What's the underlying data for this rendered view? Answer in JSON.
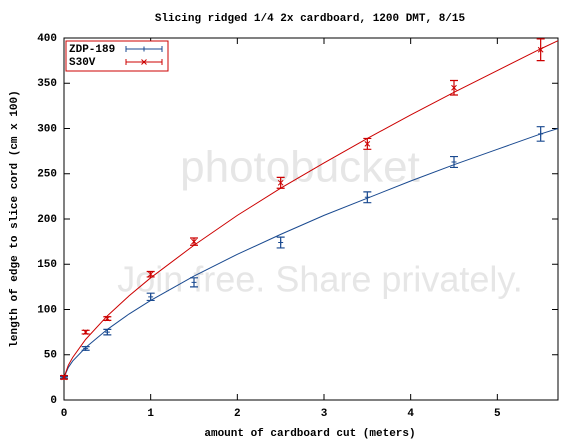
{
  "chart_data": {
    "type": "errorbar",
    "title": "Slicing ridged 1/4 2x cardboard, 1200 DMT, 8/15",
    "x_label": "amount of cardboard cut (meters)",
    "y_label": "length of edge to slice cord (cm x 100)",
    "x": [
      0,
      0.25,
      0.5,
      1,
      1.5,
      2.5,
      3.5,
      4.5,
      5.5
    ],
    "fit_x": [
      0,
      0.05,
      0.1,
      0.25,
      0.5,
      0.75,
      1,
      1.5,
      2,
      2.5,
      3,
      3.5,
      4,
      4.5,
      5,
      5.5,
      5.7
    ],
    "series": [
      {
        "name": "ZDP-189",
        "color": "#1a4a90",
        "marker": "plus",
        "values": [
          25,
          57,
          75,
          114,
          130,
          174,
          224,
          263,
          294
        ],
        "errors": [
          1,
          2,
          3,
          4,
          5,
          6,
          6,
          6,
          8
        ],
        "fit": [
          25,
          36,
          43,
          58,
          78,
          95,
          110,
          137,
          161,
          183,
          204,
          223,
          242,
          260,
          277,
          294,
          300
        ]
      },
      {
        "name": "S30V",
        "color": "#cc0000",
        "marker": "cross",
        "values": [
          25,
          75,
          90,
          139,
          175,
          240,
          283,
          345,
          387
        ],
        "errors": [
          2,
          2,
          2,
          3,
          4,
          6,
          6,
          8,
          12
        ],
        "fit": [
          25,
          38.5,
          47,
          67,
          93,
          115,
          135,
          171,
          204,
          234,
          262,
          289,
          315,
          340,
          364,
          388,
          397
        ]
      }
    ],
    "xlim": [
      0,
      5.7
    ],
    "xticks": [
      0,
      1,
      2,
      3,
      4,
      5
    ],
    "ylim": [
      0,
      400
    ],
    "yticks": [
      0,
      50,
      100,
      150,
      200,
      250,
      300,
      350,
      400
    ],
    "legend": "top-left",
    "grid": false
  },
  "watermark": {
    "logo": "photobucket",
    "tagline": "Join free. Share privately."
  }
}
